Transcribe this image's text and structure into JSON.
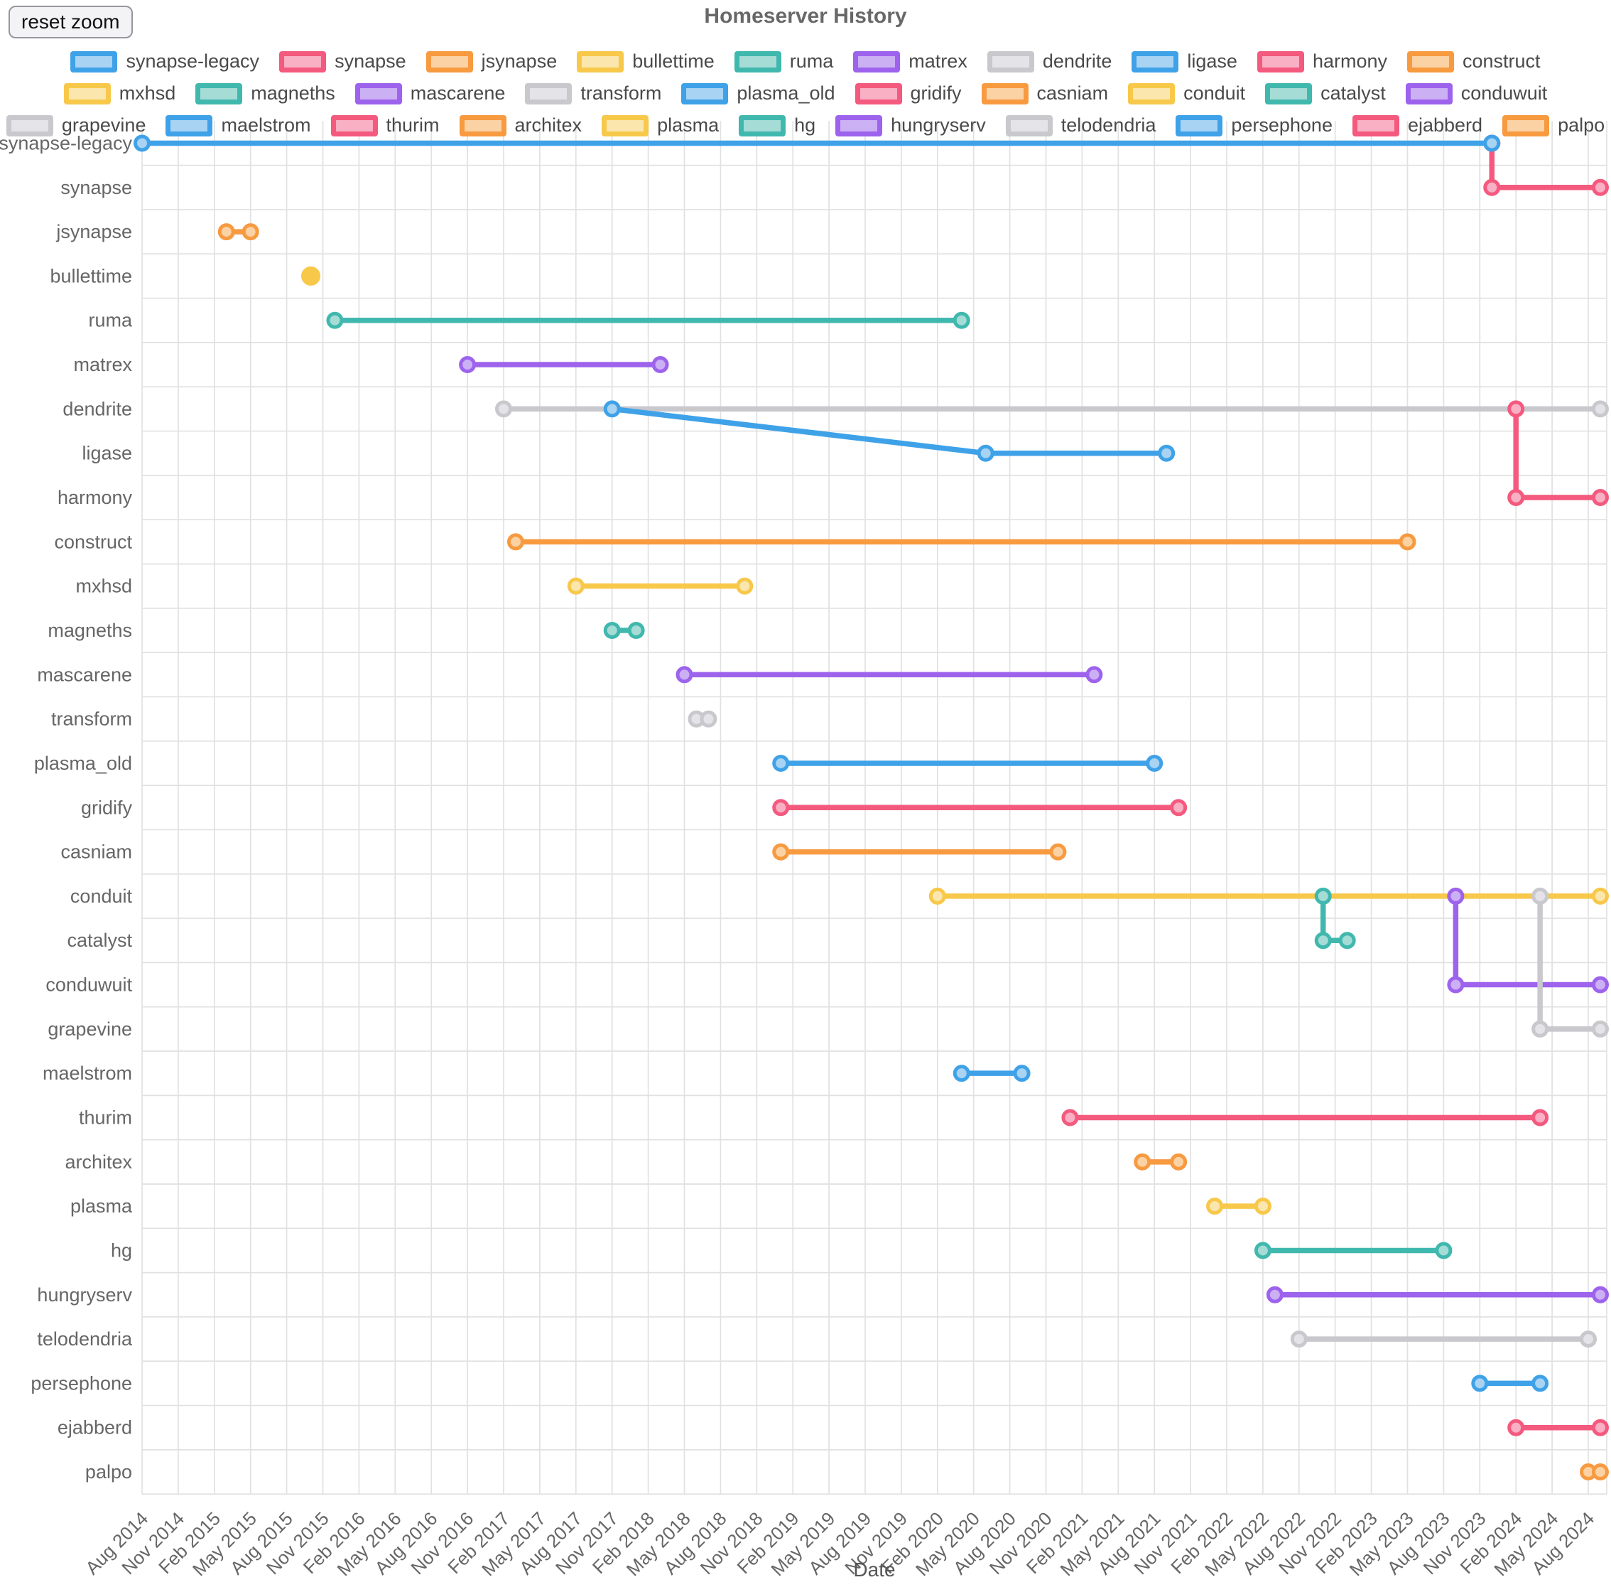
{
  "title": "Homeserver History",
  "toolbar": {
    "reset_zoom_label": "reset zoom"
  },
  "axis": {
    "x_label": "Date",
    "x_ticks": [
      "Aug 2014",
      "Nov 2014",
      "Feb 2015",
      "May 2015",
      "Aug 2015",
      "Nov 2015",
      "Feb 2016",
      "May 2016",
      "Aug 2016",
      "Nov 2016",
      "Feb 2017",
      "May 2017",
      "Aug 2017",
      "Nov 2017",
      "Feb 2018",
      "May 2018",
      "Aug 2018",
      "Nov 2018",
      "Feb 2019",
      "May 2019",
      "Aug 2019",
      "Nov 2019",
      "Feb 2020",
      "May 2020",
      "Aug 2020",
      "Nov 2020",
      "Feb 2021",
      "May 2021",
      "Aug 2021",
      "Nov 2021",
      "Feb 2022",
      "May 2022",
      "Aug 2022",
      "Nov 2022",
      "Feb 2023",
      "May 2023",
      "Aug 2023",
      "Nov 2023",
      "Feb 2024",
      "May 2024",
      "Aug 2024"
    ]
  },
  "palette": {
    "blue": {
      "stroke": "#3fa2e8",
      "fill": "#a8d3f2"
    },
    "pink": {
      "stroke": "#f4597e",
      "fill": "#f9afc4"
    },
    "orange": {
      "stroke": "#f79a40",
      "fill": "#fbd2a4"
    },
    "yellow": {
      "stroke": "#f7c84a",
      "fill": "#fbe6ae"
    },
    "teal": {
      "stroke": "#41b8ae",
      "fill": "#a6dcd6"
    },
    "purple": {
      "stroke": "#9d63ec",
      "fill": "#cbb0f4"
    },
    "gray": {
      "stroke": "#c8c8cd",
      "fill": "#e4e4e8"
    }
  },
  "chart_data": {
    "type": "line",
    "title": "Homeserver History",
    "xlabel": "Date",
    "x_range": [
      "2014-08",
      "2024-09"
    ],
    "grid": true,
    "legend_position": "top",
    "rows": [
      "synapse-legacy",
      "synapse",
      "jsynapse",
      "bullettime",
      "ruma",
      "matrex",
      "dendrite",
      "ligase",
      "harmony",
      "construct",
      "mxhsd",
      "magneths",
      "mascarene",
      "transform",
      "plasma_old",
      "gridify",
      "casniam",
      "conduit",
      "catalyst",
      "conduwuit",
      "grapevine",
      "maelstrom",
      "thurim",
      "architex",
      "plasma",
      "hg",
      "hungryserv",
      "telodendria",
      "persephone",
      "ejabberd",
      "palpo"
    ],
    "legend_rows": [
      10,
      10,
      11
    ],
    "series": [
      {
        "name": "synapse-legacy",
        "color": "blue",
        "points": [
          [
            "2014-08",
            0
          ],
          [
            "2023-12",
            0
          ]
        ]
      },
      {
        "name": "synapse",
        "color": "pink",
        "points": [
          [
            "2023-12",
            0
          ],
          [
            "2023-12",
            1
          ],
          [
            "2024-09",
            1
          ]
        ]
      },
      {
        "name": "jsynapse",
        "color": "orange",
        "points": [
          [
            "2015-03",
            2
          ],
          [
            "2015-05",
            2
          ]
        ]
      },
      {
        "name": "bullettime",
        "color": "yellow",
        "points": [
          [
            "2015-10",
            3
          ]
        ]
      },
      {
        "name": "ruma",
        "color": "teal",
        "points": [
          [
            "2015-12",
            4
          ],
          [
            "2020-04",
            4
          ]
        ]
      },
      {
        "name": "matrex",
        "color": "purple",
        "points": [
          [
            "2016-11",
            5
          ],
          [
            "2018-03",
            5
          ]
        ]
      },
      {
        "name": "dendrite",
        "color": "gray",
        "points": [
          [
            "2017-02",
            6
          ],
          [
            "2024-09",
            6
          ]
        ]
      },
      {
        "name": "ligase",
        "color": "blue",
        "points": [
          [
            "2017-11",
            6
          ],
          [
            "2020-06",
            7
          ],
          [
            "2021-09",
            7
          ]
        ]
      },
      {
        "name": "harmony",
        "color": "pink",
        "points": [
          [
            "2024-02",
            6
          ],
          [
            "2024-02",
            8
          ],
          [
            "2024-09",
            8
          ]
        ]
      },
      {
        "name": "construct",
        "color": "orange",
        "points": [
          [
            "2017-03",
            9
          ],
          [
            "2023-05",
            9
          ]
        ]
      },
      {
        "name": "mxhsd",
        "color": "yellow",
        "points": [
          [
            "2017-08",
            10
          ],
          [
            "2018-10",
            10
          ]
        ]
      },
      {
        "name": "magneths",
        "color": "teal",
        "points": [
          [
            "2017-11",
            11
          ],
          [
            "2018-01",
            11
          ]
        ]
      },
      {
        "name": "mascarene",
        "color": "purple",
        "points": [
          [
            "2018-05",
            12
          ],
          [
            "2021-03",
            12
          ]
        ]
      },
      {
        "name": "transform",
        "color": "gray",
        "points": [
          [
            "2018-06",
            13
          ],
          [
            "2018-07",
            13
          ]
        ]
      },
      {
        "name": "plasma_old",
        "color": "blue",
        "points": [
          [
            "2019-01",
            14
          ],
          [
            "2021-08",
            14
          ]
        ]
      },
      {
        "name": "gridify",
        "color": "pink",
        "points": [
          [
            "2019-01",
            15
          ],
          [
            "2021-10",
            15
          ]
        ]
      },
      {
        "name": "casniam",
        "color": "orange",
        "points": [
          [
            "2019-01",
            16
          ],
          [
            "2020-12",
            16
          ]
        ]
      },
      {
        "name": "conduit",
        "color": "yellow",
        "points": [
          [
            "2020-02",
            17
          ],
          [
            "2024-09",
            17
          ]
        ]
      },
      {
        "name": "catalyst",
        "color": "teal",
        "points": [
          [
            "2022-10",
            17
          ],
          [
            "2022-10",
            18
          ],
          [
            "2022-12",
            18
          ]
        ]
      },
      {
        "name": "conduwuit",
        "color": "purple",
        "points": [
          [
            "2023-09",
            17
          ],
          [
            "2023-09",
            19
          ],
          [
            "2024-09",
            19
          ]
        ]
      },
      {
        "name": "grapevine",
        "color": "gray",
        "points": [
          [
            "2024-04",
            17
          ],
          [
            "2024-04",
            20
          ],
          [
            "2024-09",
            20
          ]
        ]
      },
      {
        "name": "maelstrom",
        "color": "blue",
        "points": [
          [
            "2020-04",
            21
          ],
          [
            "2020-09",
            21
          ]
        ]
      },
      {
        "name": "thurim",
        "color": "pink",
        "points": [
          [
            "2021-01",
            22
          ],
          [
            "2024-04",
            22
          ]
        ]
      },
      {
        "name": "architex",
        "color": "orange",
        "points": [
          [
            "2021-07",
            23
          ],
          [
            "2021-10",
            23
          ]
        ]
      },
      {
        "name": "plasma",
        "color": "yellow",
        "points": [
          [
            "2022-01",
            24
          ],
          [
            "2022-05",
            24
          ]
        ]
      },
      {
        "name": "hg",
        "color": "teal",
        "points": [
          [
            "2022-05",
            25
          ],
          [
            "2023-08",
            25
          ]
        ]
      },
      {
        "name": "hungryserv",
        "color": "purple",
        "points": [
          [
            "2022-06",
            26
          ],
          [
            "2024-09",
            26
          ]
        ]
      },
      {
        "name": "telodendria",
        "color": "gray",
        "points": [
          [
            "2022-08",
            27
          ],
          [
            "2024-08",
            27
          ]
        ]
      },
      {
        "name": "persephone",
        "color": "blue",
        "points": [
          [
            "2023-11",
            28
          ],
          [
            "2024-04",
            28
          ]
        ]
      },
      {
        "name": "ejabberd",
        "color": "pink",
        "points": [
          [
            "2024-02",
            29
          ],
          [
            "2024-09",
            29
          ]
        ]
      },
      {
        "name": "palpo",
        "color": "orange",
        "points": [
          [
            "2024-08",
            30
          ],
          [
            "2024-09",
            30
          ]
        ]
      }
    ]
  }
}
